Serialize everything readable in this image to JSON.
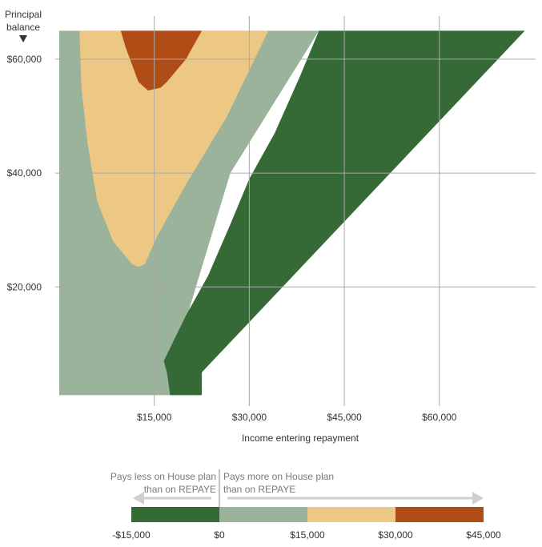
{
  "chart_data": {
    "type": "heatmap",
    "xlabel": "Income entering repayment",
    "ylabel": "Principal balance",
    "x_ticks": [
      15000,
      30000,
      45000,
      60000
    ],
    "x_tick_labels": [
      "$15,000",
      "$30,000",
      "$45,000",
      "$60,000"
    ],
    "y_ticks": [
      20000,
      40000,
      60000
    ],
    "y_tick_labels": [
      "$20,000",
      "$40,000",
      "$60,000"
    ],
    "xlim": [
      0,
      75000
    ],
    "ylim": [
      0,
      65000
    ],
    "grid": true,
    "colors": {
      "band_neg15_0": "#356936",
      "band_0_15": "#9bb39a",
      "band_15_30": "#edc885",
      "band_30_45": "#b04d17",
      "gridline": "#aaaaaa",
      "legend_text": "#7a7a7a"
    },
    "regions": [
      {
        "band": "band_0_15",
        "polygon": [
          [
            0,
            1000
          ],
          [
            0,
            65000
          ],
          [
            3200,
            65000
          ],
          [
            41000,
            65000
          ],
          [
            27000,
            40000
          ],
          [
            17500,
            5000
          ],
          [
            17500,
            1000
          ]
        ]
      },
      {
        "band": "band_15_30",
        "polygon": [
          [
            3200,
            65000
          ],
          [
            33000,
            65000
          ],
          [
            26500,
            50000
          ],
          [
            20000,
            38000
          ],
          [
            15500,
            29000
          ],
          [
            13500,
            24000
          ],
          [
            12500,
            23500
          ],
          [
            11500,
            24000
          ],
          [
            8500,
            28000
          ],
          [
            6000,
            35000
          ],
          [
            4500,
            45000
          ],
          [
            3500,
            55000
          ]
        ]
      },
      {
        "band": "band_30_45",
        "polygon": [
          [
            9700,
            65000
          ],
          [
            22500,
            65000
          ],
          [
            20000,
            60000
          ],
          [
            17000,
            56000
          ],
          [
            16000,
            55000
          ],
          [
            14000,
            54500
          ],
          [
            12500,
            56000
          ],
          [
            11500,
            59000
          ],
          [
            10500,
            62000
          ]
        ]
      },
      {
        "band": "band_neg15_0",
        "polygon": [
          [
            41000,
            65000
          ],
          [
            73500,
            65000
          ],
          [
            22500,
            5000
          ],
          [
            22500,
            1000
          ],
          [
            17500,
            1000
          ],
          [
            17000,
            5000
          ],
          [
            16500,
            7000
          ],
          [
            20000,
            15000
          ],
          [
            23500,
            22000
          ],
          [
            27000,
            31000
          ],
          [
            30000,
            39000
          ],
          [
            34000,
            47000
          ],
          [
            38000,
            57000
          ]
        ]
      }
    ],
    "legend": {
      "left_caption": [
        "Pays less on House plan",
        "than on REPAYE"
      ],
      "right_caption": [
        "Pays more on House plan",
        "than on REPAYE"
      ],
      "bins": [
        {
          "band": "band_neg15_0",
          "from": -15000,
          "to": 0
        },
        {
          "band": "band_0_15",
          "from": 0,
          "to": 15000
        },
        {
          "band": "band_15_30",
          "from": 15000,
          "to": 30000
        },
        {
          "band": "band_30_45",
          "from": 30000,
          "to": 45000
        }
      ],
      "tick_labels": [
        "-$15,000",
        "$0",
        "$15,000",
        "$30,000",
        "$45,000"
      ]
    }
  }
}
